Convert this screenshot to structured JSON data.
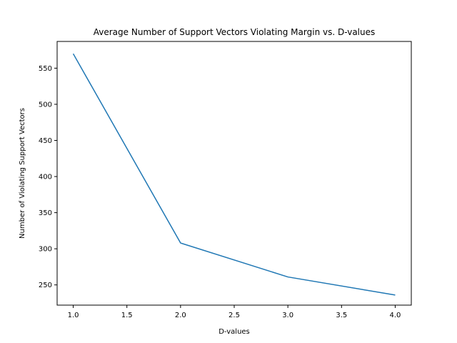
{
  "chart_data": {
    "type": "line",
    "title": "Average Number of Support Vectors Violating Margin vs. D-values",
    "xlabel": "D-values",
    "ylabel": "Number of Violating Support Vectors",
    "xlim": [
      0.85,
      4.15
    ],
    "ylim": [
      222,
      587
    ],
    "xticks": [
      1.0,
      1.5,
      2.0,
      2.5,
      3.0,
      3.5,
      4.0
    ],
    "xtick_labels": [
      "1.0",
      "1.5",
      "2.0",
      "2.5",
      "3.0",
      "3.5",
      "4.0"
    ],
    "yticks": [
      250,
      300,
      350,
      400,
      450,
      500,
      550
    ],
    "ytick_labels": [
      "250",
      "300",
      "350",
      "400",
      "450",
      "500",
      "550"
    ],
    "grid": false,
    "series": [
      {
        "color": "#1f77b4",
        "x": [
          1,
          2,
          3,
          4
        ],
        "y": [
          570,
          308,
          261,
          236
        ]
      }
    ]
  }
}
